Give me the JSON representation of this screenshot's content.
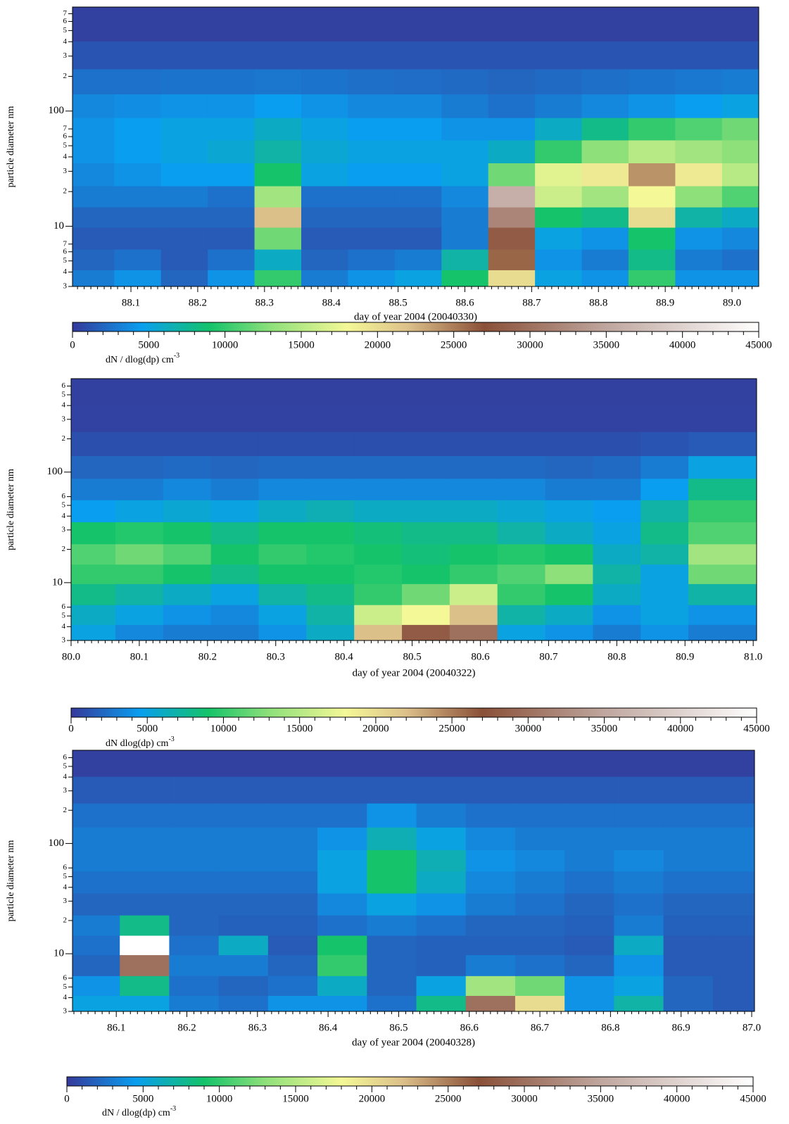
{
  "chart_data": [
    {
      "type": "heatmap",
      "xlabel": "day of year 2004 (20040330)",
      "ylabel": "particle diameter  nm",
      "xlim": [
        88.0125,
        89.04
      ],
      "xticks": [
        88.1,
        88.2,
        88.3,
        88.4,
        88.5,
        88.6,
        88.7,
        88.8,
        88.9,
        {
          "value": 89,
          "label": "89.0"
        }
      ],
      "ylim": [
        3,
        800
      ],
      "ylog": true,
      "yticks": [
        3,
        4,
        5,
        6,
        7,
        10,
        {
          "value": 20,
          "label": "2"
        },
        {
          "value": 30,
          "label": "3"
        },
        {
          "value": 40,
          "label": "4"
        },
        {
          "value": 50,
          "label": "5"
        },
        {
          "value": 60,
          "label": "6"
        },
        {
          "value": 70,
          "label": "7"
        },
        100,
        {
          "value": 200,
          "label": "2"
        },
        {
          "value": 300,
          "label": "3"
        },
        {
          "value": 400,
          "label": "4"
        },
        {
          "value": 500,
          "label": "5"
        },
        {
          "value": 600,
          "label": "6"
        },
        {
          "value": 700,
          "label": "7"
        }
      ],
      "x": [
        88.04,
        88.11,
        88.18,
        88.25,
        88.32,
        88.39,
        88.46,
        88.53,
        88.6,
        88.67,
        88.74,
        88.81,
        88.88,
        88.95,
        89.02
      ],
      "y": [
        3.5,
        5,
        8,
        12,
        18,
        28,
        45,
        70,
        110,
        180,
        300,
        550
      ],
      "values": [
        [
          3000,
          4000,
          2000,
          4000,
          10000,
          3000,
          4000,
          5000,
          9000,
          20000,
          5000,
          4000,
          10000,
          4000,
          4000
        ],
        [
          2000,
          2500,
          1500,
          2500,
          6000,
          2000,
          2500,
          3000,
          7000,
          26000,
          4000,
          3000,
          8000,
          3000,
          2500
        ],
        [
          1500,
          1500,
          1500,
          1500,
          12000,
          1500,
          1500,
          1500,
          3000,
          28000,
          5000,
          4000,
          9000,
          4000,
          3500
        ],
        [
          2000,
          2000,
          2000,
          2000,
          22000,
          2000,
          2000,
          2000,
          3000,
          32000,
          9000,
          8000,
          20000,
          7000,
          6000
        ],
        [
          3000,
          3000,
          3000,
          2500,
          14000,
          2500,
          2500,
          2500,
          3500,
          36000,
          16000,
          14000,
          18000,
          13000,
          11000
        ],
        [
          3500,
          4000,
          4500,
          4500,
          9000,
          5000,
          4500,
          4500,
          5000,
          12000,
          17000,
          19000,
          24000,
          19000,
          15000
        ],
        [
          4000,
          4500,
          5000,
          5500,
          7000,
          5500,
          5000,
          5000,
          5000,
          6000,
          10000,
          13000,
          15000,
          14000,
          13000
        ],
        [
          4000,
          4500,
          5000,
          5000,
          6000,
          5000,
          4500,
          4500,
          4000,
          4000,
          6000,
          8000,
          10000,
          11000,
          12000
        ],
        [
          3500,
          3800,
          4000,
          4000,
          4500,
          4000,
          3500,
          3500,
          3000,
          2500,
          3000,
          3500,
          4000,
          4500,
          5000
        ],
        [
          2500,
          2500,
          2600,
          2600,
          2700,
          2600,
          2400,
          2300,
          2200,
          2000,
          2200,
          2400,
          2600,
          2800,
          3000
        ],
        [
          1200,
          1200,
          1200,
          1200,
          1200,
          1200,
          1200,
          1200,
          1200,
          1200,
          1200,
          1200,
          1200,
          1200,
          1200
        ],
        [
          300,
          300,
          300,
          300,
          300,
          300,
          300,
          300,
          300,
          300,
          300,
          300,
          300,
          300,
          300
        ]
      ],
      "colorbar": {
        "zlim": [
          0,
          45000
        ],
        "zticks": [
          0,
          5000,
          10000,
          15000,
          20000,
          25000,
          30000,
          35000,
          40000,
          45000
        ],
        "label": "dN / dlog(dp) cm",
        "label_sup": "-3"
      },
      "colormap": [
        [
          0,
          "#35399a"
        ],
        [
          4500,
          "#0a9ef0"
        ],
        [
          9000,
          "#14c36a"
        ],
        [
          13000,
          "#8ee07a"
        ],
        [
          18000,
          "#f4f896"
        ],
        [
          22000,
          "#dcc08a"
        ],
        [
          27000,
          "#8a5038"
        ],
        [
          35000,
          "#bfa69e"
        ],
        [
          45000,
          "#ffffff"
        ]
      ]
    },
    {
      "type": "heatmap",
      "xlabel": "day of year 2004 (20040322)",
      "ylabel": "particle diameter  nm",
      "xlim": [
        80.0,
        81.005
      ],
      "xticks": [
        {
          "value": 80,
          "label": "80.0"
        },
        80.1,
        80.2,
        80.3,
        80.4,
        80.5,
        80.6,
        80.7,
        80.8,
        80.9,
        {
          "value": 81,
          "label": "81.0"
        }
      ],
      "ylim": [
        3,
        700
      ],
      "ylog": true,
      "yticks": [
        3,
        4,
        5,
        6,
        10,
        {
          "value": 20,
          "label": "2"
        },
        {
          "value": 30,
          "label": "3"
        },
        {
          "value": 40,
          "label": "4"
        },
        {
          "value": 50,
          "label": "5"
        },
        {
          "value": 60,
          "label": "6"
        },
        100,
        {
          "value": 200,
          "label": "2"
        },
        {
          "value": 300,
          "label": "3"
        },
        {
          "value": 400,
          "label": "4"
        },
        {
          "value": 500,
          "label": "5"
        },
        {
          "value": 600,
          "label": "6"
        }
      ],
      "x": [
        80.03,
        80.1,
        80.17,
        80.24,
        80.31,
        80.38,
        80.45,
        80.52,
        80.59,
        80.66,
        80.73,
        80.8,
        80.87,
        80.94
      ],
      "y": [
        3.5,
        5,
        8,
        12,
        18,
        28,
        45,
        70,
        110,
        180,
        300,
        550
      ],
      "values": [
        [
          5000,
          3500,
          3000,
          3000,
          4000,
          6000,
          22000,
          28000,
          30000,
          5000,
          4000,
          3000,
          4000,
          3000
        ],
        [
          6000,
          5000,
          4000,
          3500,
          5000,
          7000,
          16000,
          18000,
          22000,
          7000,
          6000,
          4000,
          5000,
          4000
        ],
        [
          8000,
          7000,
          6000,
          5000,
          7000,
          8000,
          10000,
          12000,
          16000,
          10000,
          9000,
          6000,
          5000,
          7000
        ],
        [
          10000,
          10000,
          9000,
          8000,
          9000,
          9000,
          9500,
          9000,
          10000,
          11000,
          13000,
          7000,
          5000,
          12000
        ],
        [
          11000,
          12000,
          11000,
          9000,
          10000,
          9500,
          9000,
          8500,
          9000,
          9500,
          9000,
          6000,
          7000,
          14000
        ],
        [
          9000,
          9500,
          9000,
          8000,
          9000,
          9000,
          8500,
          8000,
          8000,
          7000,
          6000,
          5000,
          8000,
          11000
        ],
        [
          4500,
          5000,
          5500,
          5000,
          6000,
          6500,
          6000,
          6000,
          6000,
          5500,
          5000,
          4500,
          7000,
          10000
        ],
        [
          3000,
          3000,
          3500,
          3000,
          3500,
          3500,
          3500,
          3500,
          3500,
          3500,
          3000,
          3000,
          4500,
          8000
        ],
        [
          2000,
          2000,
          2200,
          2000,
          2200,
          2200,
          2200,
          2200,
          2200,
          2200,
          2000,
          2200,
          3000,
          5000
        ],
        [
          1000,
          1000,
          1000,
          1000,
          1000,
          1000,
          1000,
          1000,
          1000,
          1000,
          1000,
          1000,
          1200,
          1500
        ],
        [
          400,
          400,
          400,
          400,
          400,
          400,
          400,
          400,
          400,
          400,
          400,
          400,
          400,
          400
        ],
        [
          300,
          300,
          300,
          300,
          300,
          300,
          300,
          300,
          300,
          300,
          300,
          300,
          300,
          300
        ]
      ],
      "colorbar": {
        "zlim": [
          0,
          45000
        ],
        "zticks": [
          0,
          5000,
          10000,
          15000,
          20000,
          25000,
          30000,
          35000,
          40000,
          45000
        ],
        "label": "dN dlog(dp) cm",
        "label_sup": "-3"
      },
      "colormap": [
        [
          0,
          "#35399a"
        ],
        [
          4500,
          "#0a9ef0"
        ],
        [
          9000,
          "#14c36a"
        ],
        [
          13000,
          "#8ee07a"
        ],
        [
          18000,
          "#f4f896"
        ],
        [
          22000,
          "#dcc08a"
        ],
        [
          27000,
          "#8a5038"
        ],
        [
          35000,
          "#bfa69e"
        ],
        [
          45000,
          "#ffffff"
        ]
      ]
    },
    {
      "type": "heatmap",
      "xlabel": "day of year 2004 (20040328)",
      "ylabel": "particle diameter  nm",
      "xlim": [
        86.038,
        87.004
      ],
      "xticks": [
        86.1,
        86.2,
        86.3,
        86.4,
        86.5,
        86.6,
        86.7,
        86.8,
        86.9,
        {
          "value": 87,
          "label": "87.0"
        }
      ],
      "ylim": [
        3,
        700
      ],
      "ylog": true,
      "yticks": [
        3,
        4,
        5,
        6,
        10,
        {
          "value": 20,
          "label": "2"
        },
        {
          "value": 30,
          "label": "3"
        },
        {
          "value": 40,
          "label": "4"
        },
        {
          "value": 50,
          "label": "5"
        },
        {
          "value": 60,
          "label": "6"
        },
        100,
        {
          "value": 200,
          "label": "2"
        },
        {
          "value": 300,
          "label": "3"
        },
        {
          "value": 400,
          "label": "4"
        },
        {
          "value": 500,
          "label": "5"
        },
        {
          "value": 600,
          "label": "6"
        }
      ],
      "x": [
        86.07,
        86.14,
        86.21,
        86.28,
        86.35,
        86.42,
        86.49,
        86.56,
        86.63,
        86.7,
        86.77,
        86.84,
        86.91,
        86.98
      ],
      "y": [
        3.5,
        5,
        8,
        12,
        18,
        28,
        45,
        70,
        110,
        180,
        300,
        550
      ],
      "values": [
        [
          5000,
          5000,
          3000,
          2500,
          4000,
          4000,
          2500,
          8000,
          30000,
          20000,
          4000,
          7000,
          2000,
          1500
        ],
        [
          4000,
          8000,
          2500,
          2000,
          2500,
          6000,
          2000,
          5000,
          14000,
          12000,
          4000,
          5000,
          2000,
          1500
        ],
        [
          2000,
          30000,
          3000,
          3000,
          2000,
          10000,
          2000,
          1800,
          3000,
          2500,
          2000,
          4000,
          1500,
          1500
        ],
        [
          2500,
          45000,
          2500,
          6000,
          1500,
          9000,
          2000,
          1800,
          1800,
          1800,
          1500,
          6000,
          1500,
          1500
        ],
        [
          3000,
          8000,
          2000,
          1800,
          1800,
          2500,
          3000,
          2500,
          2000,
          2000,
          1800,
          3000,
          1800,
          1800
        ],
        [
          2000,
          2000,
          2000,
          2000,
          2000,
          3500,
          5000,
          4000,
          3000,
          2500,
          2000,
          2500,
          2000,
          2000
        ],
        [
          2500,
          2500,
          2500,
          2500,
          2500,
          5000,
          9000,
          6000,
          3500,
          3000,
          2500,
          3000,
          2500,
          2500
        ],
        [
          3000,
          3000,
          3000,
          3000,
          3000,
          5000,
          9000,
          6500,
          4000,
          3500,
          3000,
          3500,
          3000,
          3000
        ],
        [
          3000,
          3000,
          3000,
          3000,
          3000,
          4000,
          6500,
          5000,
          3500,
          3000,
          3000,
          3000,
          3000,
          3000
        ],
        [
          2500,
          2500,
          2500,
          2500,
          2500,
          2500,
          4000,
          3000,
          2500,
          2500,
          2500,
          2500,
          2500,
          2500
        ],
        [
          1500,
          1500,
          1500,
          1500,
          1500,
          1500,
          1500,
          1500,
          1500,
          1500,
          1500,
          1500,
          1500,
          1500
        ],
        [
          300,
          300,
          300,
          300,
          300,
          300,
          300,
          300,
          300,
          300,
          300,
          300,
          300,
          300
        ]
      ],
      "colorbar": {
        "zlim": [
          0,
          45000
        ],
        "zticks": [
          0,
          5000,
          10000,
          15000,
          20000,
          25000,
          30000,
          35000,
          40000,
          45000
        ],
        "label": "dN / dlog(dp) cm",
        "label_sup": "-3"
      },
      "colormap": [
        [
          0,
          "#35399a"
        ],
        [
          4500,
          "#0a9ef0"
        ],
        [
          9000,
          "#14c36a"
        ],
        [
          13000,
          "#8ee07a"
        ],
        [
          18000,
          "#f4f896"
        ],
        [
          22000,
          "#dcc08a"
        ],
        [
          27000,
          "#8a5038"
        ],
        [
          35000,
          "#bfa69e"
        ],
        [
          45000,
          "#ffffff"
        ]
      ]
    }
  ]
}
